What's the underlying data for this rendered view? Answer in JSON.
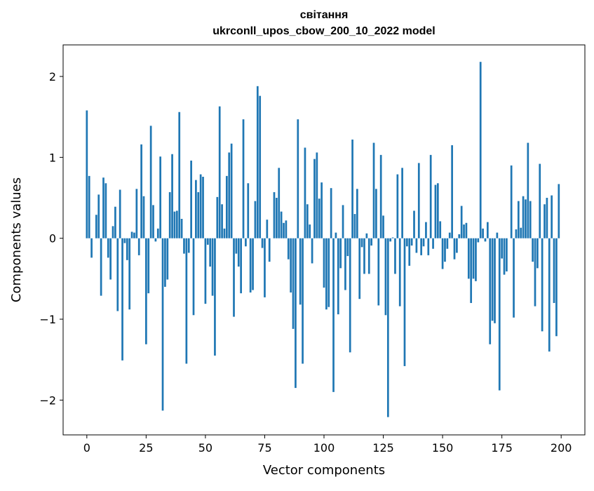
{
  "chart_data": {
    "type": "bar",
    "title": "світання\nukrconll_upos_cbow_200_10_2022 model",
    "title_lines": [
      "світання",
      "ukrconll_upos_cbow_200_10_2022 model"
    ],
    "xlabel": "Vector components",
    "ylabel": "Components values",
    "xlim": [
      -10,
      210
    ],
    "ylim": [
      -2.43,
      2.39
    ],
    "xticks": [
      0,
      25,
      50,
      75,
      100,
      125,
      150,
      175,
      200
    ],
    "yticks": [
      -2,
      -1,
      0,
      1,
      2
    ],
    "ytick_labels": [
      "−2",
      "−1",
      "0",
      "1",
      "2"
    ],
    "grid": false,
    "bar_color": "#1f77b4",
    "x": [
      0,
      1,
      2,
      3,
      4,
      5,
      6,
      7,
      8,
      9,
      10,
      11,
      12,
      13,
      14,
      15,
      16,
      17,
      18,
      19,
      20,
      21,
      22,
      23,
      24,
      25,
      26,
      27,
      28,
      29,
      30,
      31,
      32,
      33,
      34,
      35,
      36,
      37,
      38,
      39,
      40,
      41,
      42,
      43,
      44,
      45,
      46,
      47,
      48,
      49,
      50,
      51,
      52,
      53,
      54,
      55,
      56,
      57,
      58,
      59,
      60,
      61,
      62,
      63,
      64,
      65,
      66,
      67,
      68,
      69,
      70,
      71,
      72,
      73,
      74,
      75,
      76,
      77,
      78,
      79,
      80,
      81,
      82,
      83,
      84,
      85,
      86,
      87,
      88,
      89,
      90,
      91,
      92,
      93,
      94,
      95,
      96,
      97,
      98,
      99,
      100,
      101,
      102,
      103,
      104,
      105,
      106,
      107,
      108,
      109,
      110,
      111,
      112,
      113,
      114,
      115,
      116,
      117,
      118,
      119,
      120,
      121,
      122,
      123,
      124,
      125,
      126,
      127,
      128,
      129,
      130,
      131,
      132,
      133,
      134,
      135,
      136,
      137,
      138,
      139,
      140,
      141,
      142,
      143,
      144,
      145,
      146,
      147,
      148,
      149,
      150,
      151,
      152,
      153,
      154,
      155,
      156,
      157,
      158,
      159,
      160,
      161,
      162,
      163,
      164,
      165,
      166,
      167,
      168,
      169,
      170,
      171,
      172,
      173,
      174,
      175,
      176,
      177,
      178,
      179,
      180,
      181,
      182,
      183,
      184,
      185,
      186,
      187,
      188,
      189,
      190,
      191,
      192,
      193,
      194,
      195,
      196,
      197,
      198,
      199
    ],
    "values": [
      1.58,
      0.77,
      -0.24,
      0.0,
      0.29,
      0.54,
      -0.71,
      0.75,
      0.68,
      -0.24,
      -0.51,
      0.15,
      0.39,
      -0.9,
      0.6,
      -1.51,
      -0.06,
      -0.27,
      -0.88,
      0.08,
      0.07,
      0.61,
      -0.21,
      1.16,
      0.52,
      -1.31,
      -0.68,
      1.39,
      0.41,
      -0.04,
      0.12,
      1.01,
      -2.13,
      -0.6,
      -0.51,
      0.57,
      1.04,
      0.33,
      0.34,
      1.56,
      0.24,
      -0.19,
      -1.55,
      -0.18,
      0.96,
      -0.95,
      0.72,
      0.57,
      0.79,
      0.76,
      -0.81,
      -0.08,
      -0.35,
      -0.71,
      -1.45,
      0.51,
      1.63,
      0.42,
      0.12,
      0.77,
      1.06,
      1.17,
      -0.97,
      -0.19,
      -0.35,
      -0.68,
      1.47,
      -0.1,
      0.68,
      -0.67,
      -0.64,
      0.46,
      1.88,
      1.76,
      -0.12,
      -0.73,
      0.23,
      -0.29,
      0.0,
      0.57,
      0.5,
      0.87,
      0.33,
      0.19,
      0.22,
      -0.26,
      -0.67,
      -1.12,
      -1.85,
      1.47,
      -0.82,
      -1.55,
      1.12,
      0.42,
      0.17,
      -0.31,
      0.98,
      1.06,
      0.49,
      0.69,
      -0.61,
      -0.88,
      -0.85,
      0.62,
      -1.9,
      0.07,
      -0.94,
      -0.37,
      0.41,
      -0.64,
      -0.22,
      -1.41,
      1.22,
      0.3,
      0.61,
      -0.75,
      -0.11,
      -0.44,
      0.06,
      -0.44,
      -0.09,
      1.18,
      0.61,
      -0.83,
      1.03,
      0.28,
      -0.95,
      -2.21,
      -0.04,
      0.01,
      -0.44,
      0.79,
      -0.84,
      0.87,
      -1.58,
      -0.1,
      -0.34,
      -0.09,
      0.34,
      -0.18,
      0.93,
      -0.21,
      -0.1,
      0.2,
      -0.21,
      1.03,
      -0.13,
      0.66,
      0.68,
      0.21,
      -0.38,
      -0.29,
      -0.13,
      0.07,
      1.15,
      -0.26,
      -0.18,
      0.05,
      0.4,
      0.17,
      0.19,
      -0.5,
      -0.8,
      -0.5,
      -0.53,
      -0.05,
      2.18,
      0.12,
      -0.04,
      0.2,
      -1.31,
      -1.02,
      -1.05,
      0.07,
      -1.88,
      -0.25,
      -0.45,
      -0.41,
      0.0,
      0.9,
      -0.98,
      0.11,
      0.46,
      0.13,
      0.52,
      0.48,
      1.18,
      0.46,
      -0.29,
      -0.84,
      -0.37,
      0.92,
      -1.15,
      0.42,
      0.5,
      -1.4,
      0.53,
      -0.8,
      -1.21,
      0.67
    ]
  }
}
